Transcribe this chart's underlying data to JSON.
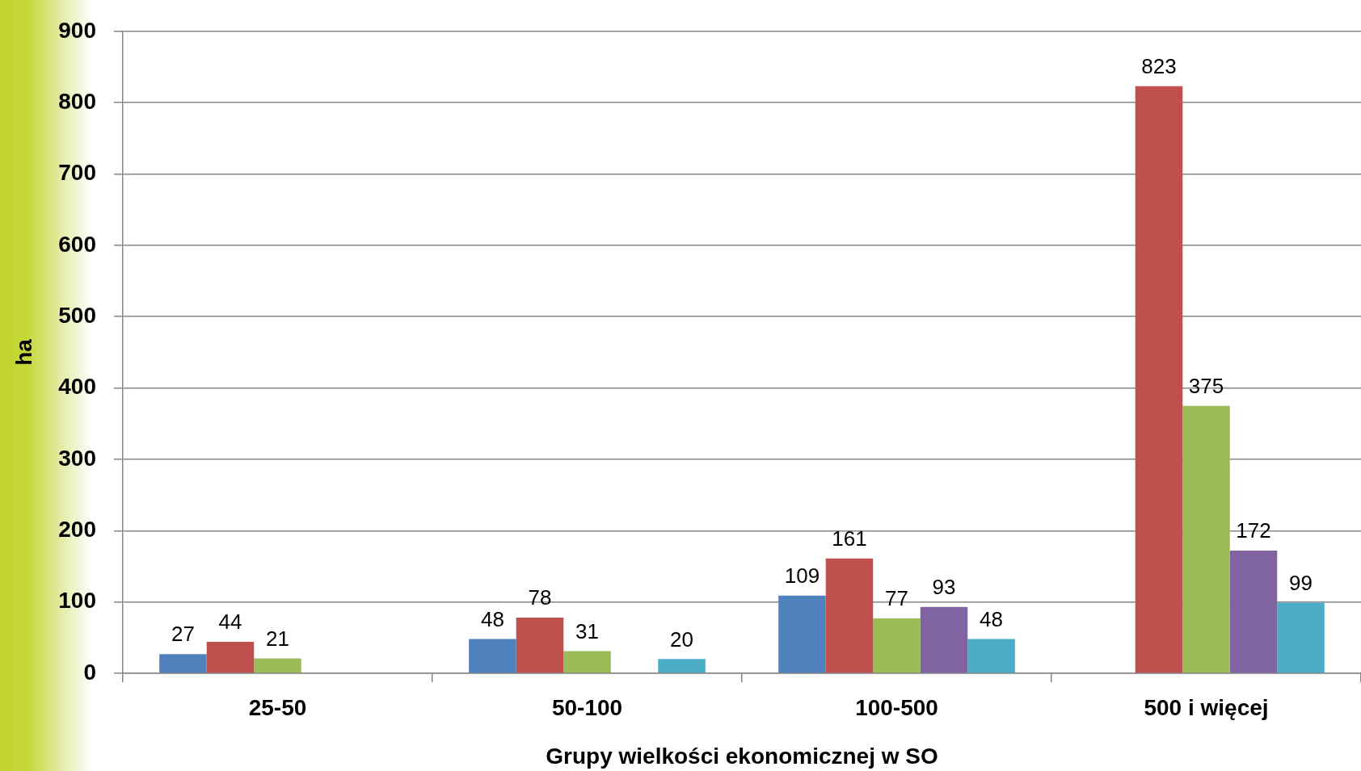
{
  "chart_data": {
    "type": "bar",
    "xlabel": "Grupy wielkości ekonomicznej w SO",
    "ylabel": "ha",
    "categories": [
      "25-50",
      "50-100",
      "100-500",
      "500 i więcej"
    ],
    "series": [
      {
        "color": "#4f81bd",
        "values": [
          27,
          48,
          109,
          null
        ]
      },
      {
        "color": "#c0504d",
        "values": [
          44,
          78,
          161,
          823
        ]
      },
      {
        "color": "#9bbb59",
        "values": [
          21,
          31,
          77,
          375
        ]
      },
      {
        "color": "#8064a2",
        "values": [
          null,
          null,
          93,
          172
        ]
      },
      {
        "color": "#4bacc6",
        "values": [
          null,
          20,
          48,
          99
        ]
      }
    ],
    "ylim": [
      0,
      900
    ],
    "yticks": [
      0,
      100,
      200,
      300,
      400,
      500,
      600,
      700,
      800,
      900
    ],
    "grid": "y",
    "data_labels": true
  }
}
